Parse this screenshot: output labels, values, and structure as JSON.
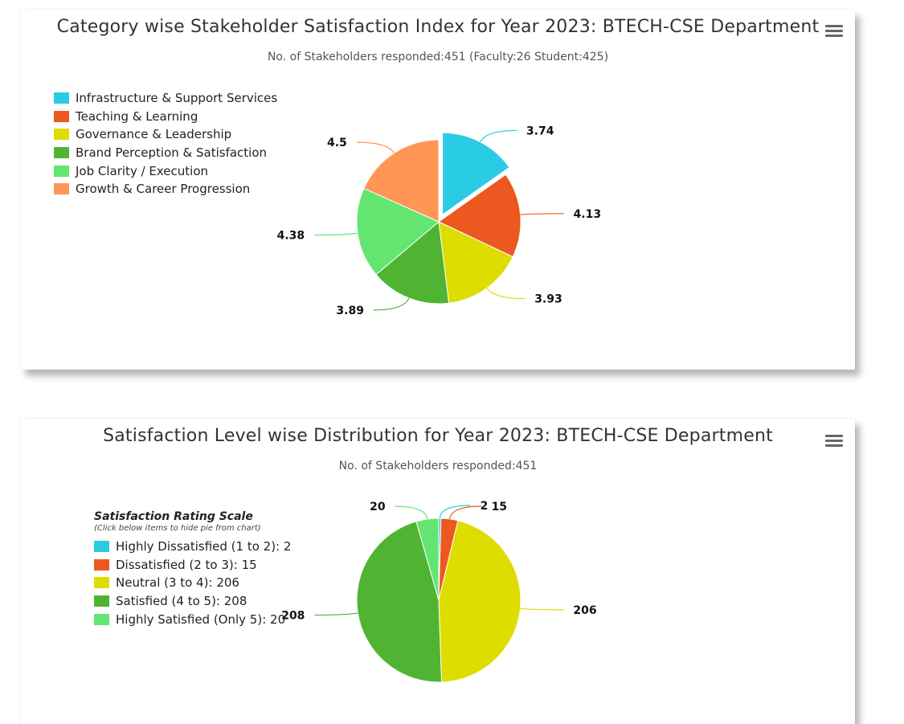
{
  "chart_data": [
    {
      "type": "pie",
      "title": "Category wise Stakeholder Satisfaction Index for Year 2023: BTECH-CSE Department",
      "subtitle": "No. of Stakeholders responded:451 (Faculty:26 Student:425)",
      "legend_position": "top-left",
      "slices": [
        {
          "name": "Infrastructure & Support Services",
          "value": 3.74,
          "label": "3.74",
          "color": "#2acce3",
          "sliced": true
        },
        {
          "name": "Teaching & Learning",
          "value": 4.13,
          "label": "4.13",
          "color": "#ec581f"
        },
        {
          "name": "Governance & Leadership",
          "value": 3.93,
          "label": "3.93",
          "color": "#dddd00"
        },
        {
          "name": "Brand Perception & Satisfaction",
          "value": 3.89,
          "label": "3.89",
          "color": "#50b432"
        },
        {
          "name": "Job Clarity / Execution",
          "value": 4.38,
          "label": "4.38",
          "color": "#64e572"
        },
        {
          "name": "Growth & Career Progression",
          "value": 4.5,
          "label": "4.5",
          "color": "#ff9655"
        }
      ]
    },
    {
      "type": "pie",
      "title": "Satisfaction Level wise Distribution for Year 2023: BTECH-CSE Department",
      "subtitle": "No. of Stakeholders responded:451",
      "legend_position": "left",
      "legend_title": "Satisfaction Rating Scale",
      "legend_note": "(Click below items to hide pie from chart)",
      "slices": [
        {
          "name": "Highly Dissatisfied (1 to 2): 2",
          "value": 2,
          "label": "2",
          "color": "#2acce3"
        },
        {
          "name": "Dissatisfied (2 to 3): 15",
          "value": 15,
          "label": "15",
          "color": "#ec581f"
        },
        {
          "name": "Neutral (3 to 4): 206",
          "value": 206,
          "label": "206",
          "color": "#dddd00"
        },
        {
          "name": "Satisfied (4 to 5): 208",
          "value": 208,
          "label": "208",
          "color": "#50b432"
        },
        {
          "name": "Highly Satisfied (Only 5): 20",
          "value": 20,
          "label": "20",
          "color": "#64e572"
        }
      ]
    }
  ]
}
